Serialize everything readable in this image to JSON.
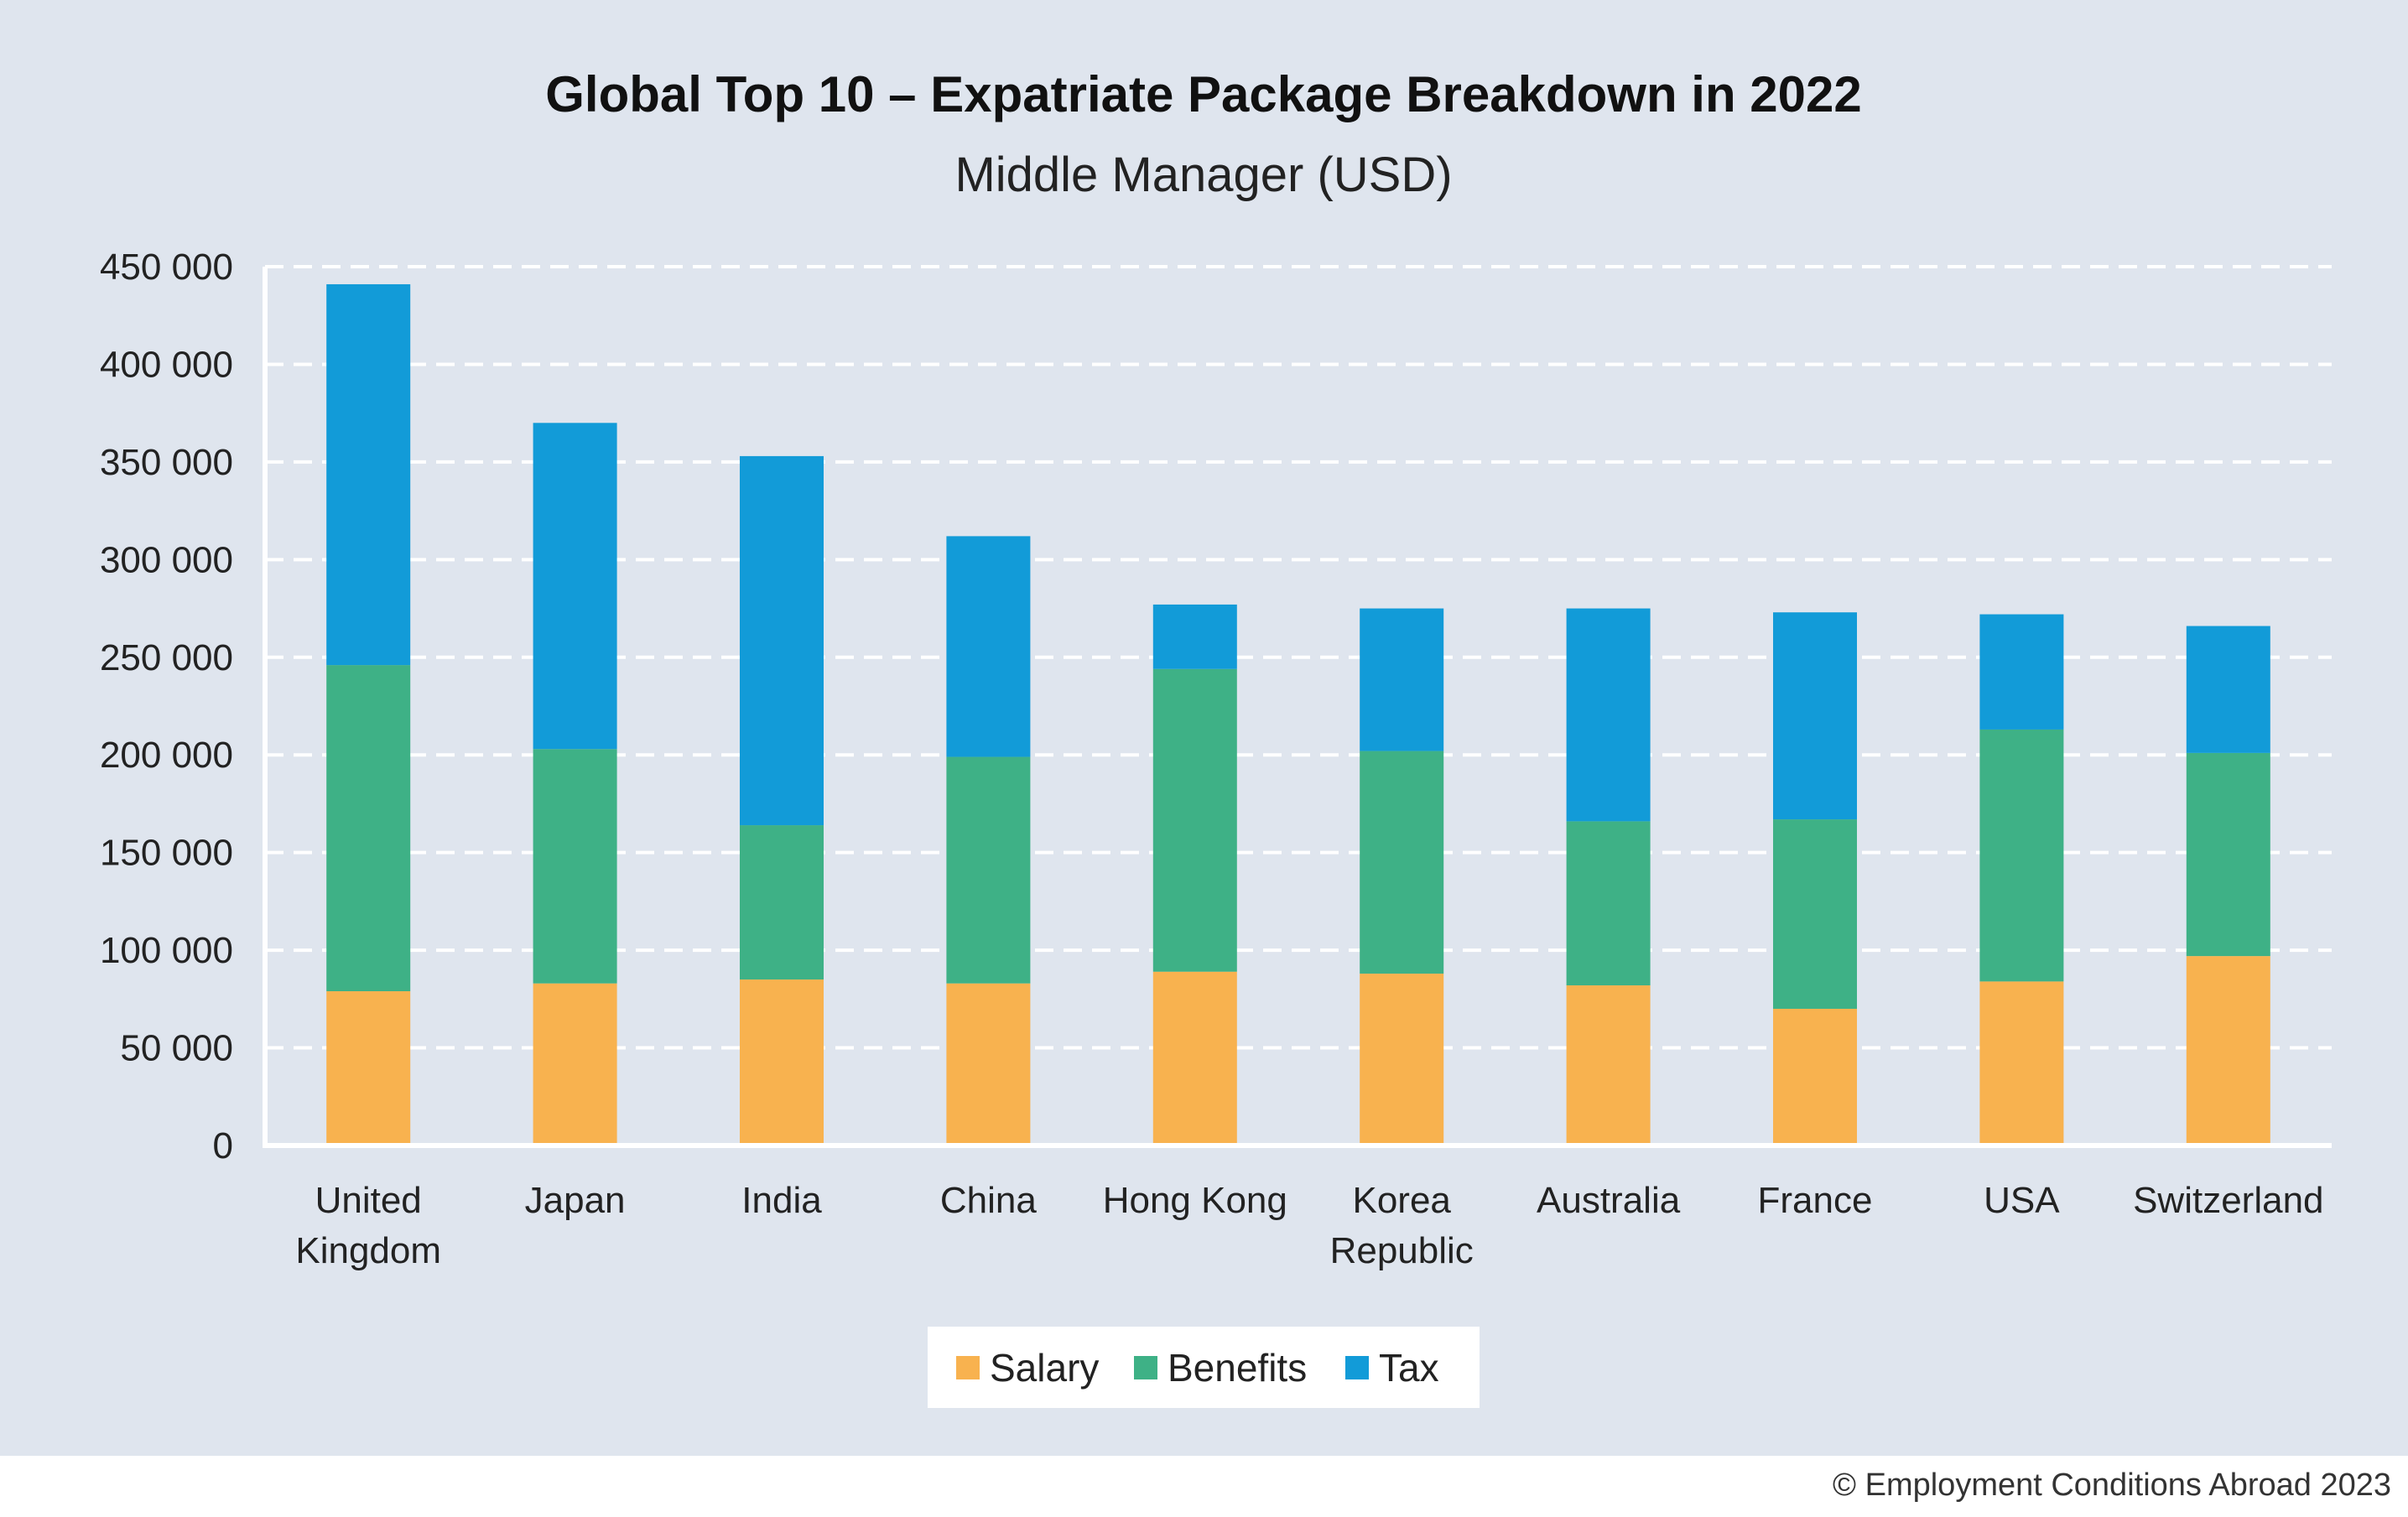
{
  "title": "Global Top 10 – Expatriate Package Breakdown in 2022",
  "subtitle": "Middle Manager (USD)",
  "footer": "© Employment Conditions Abroad 2023",
  "colors": {
    "background": "#dfe5ee",
    "salary": "#f8b24f",
    "benefits": "#3eb186",
    "tax": "#129bd8",
    "grid": "#ffffff"
  },
  "chart_data": {
    "type": "bar",
    "stacked": true,
    "title": "Global Top 10 – Expatriate Package Breakdown in 2022",
    "subtitle": "Middle Manager (USD)",
    "categories": [
      [
        "United",
        "Kingdom"
      ],
      [
        "Japan"
      ],
      [
        "India"
      ],
      [
        "China"
      ],
      [
        "Hong Kong"
      ],
      [
        "Korea",
        "Republic"
      ],
      [
        "Australia"
      ],
      [
        "France"
      ],
      [
        "USA"
      ],
      [
        "Switzerland"
      ]
    ],
    "series": [
      {
        "name": "Salary",
        "color": "#f8b24f",
        "values": [
          79000,
          83000,
          85000,
          83000,
          89000,
          88000,
          82000,
          70000,
          84000,
          97000
        ]
      },
      {
        "name": "Benefits",
        "color": "#3eb186",
        "values": [
          167000,
          120000,
          79000,
          116000,
          155000,
          114000,
          84000,
          97000,
          129000,
          104000
        ]
      },
      {
        "name": "Tax",
        "color": "#129bd8",
        "values": [
          195000,
          167000,
          189000,
          113000,
          33000,
          73000,
          109000,
          106000,
          59000,
          65000
        ]
      }
    ],
    "ylim": [
      0,
      450000
    ],
    "yticks": [
      0,
      50000,
      100000,
      150000,
      200000,
      250000,
      300000,
      350000,
      400000,
      450000
    ],
    "ytick_labels": [
      "0",
      "50 000",
      "100 000",
      "150 000",
      "200 000",
      "250 000",
      "300 000",
      "350 000",
      "400 000",
      "450 000"
    ],
    "grid": "dashed horizontal",
    "legend": "bottom-center"
  }
}
